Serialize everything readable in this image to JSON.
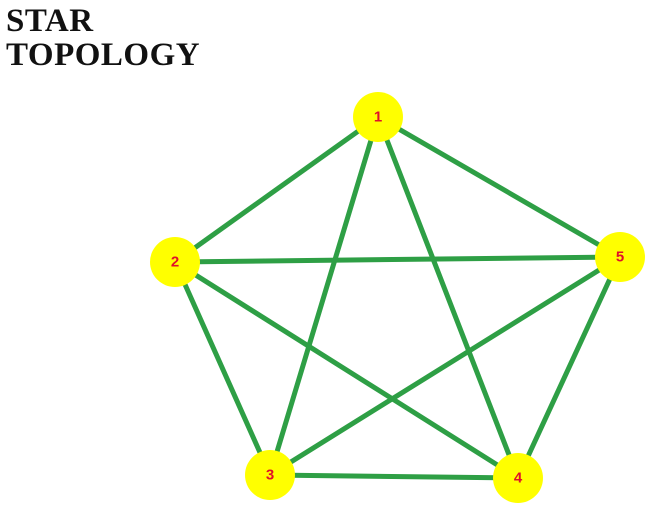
{
  "title": {
    "line1": "STAR",
    "line2": "TOPOLOGY"
  },
  "colors": {
    "edge": "#2e9f45",
    "node_fill": "#ffff00",
    "node_label": "#e0102a",
    "title": "#111111"
  },
  "nodes": [
    {
      "id": "1",
      "label": "1"
    },
    {
      "id": "2",
      "label": "2"
    },
    {
      "id": "3",
      "label": "3"
    },
    {
      "id": "4",
      "label": "4"
    },
    {
      "id": "5",
      "label": "5"
    }
  ],
  "edges": [
    {
      "from": "1",
      "to": "2"
    },
    {
      "from": "1",
      "to": "5"
    },
    {
      "from": "2",
      "to": "3"
    },
    {
      "from": "3",
      "to": "4"
    },
    {
      "from": "4",
      "to": "5"
    },
    {
      "from": "1",
      "to": "3"
    },
    {
      "from": "1",
      "to": "4"
    },
    {
      "from": "2",
      "to": "5"
    },
    {
      "from": "2",
      "to": "4"
    },
    {
      "from": "3",
      "to": "5"
    }
  ]
}
